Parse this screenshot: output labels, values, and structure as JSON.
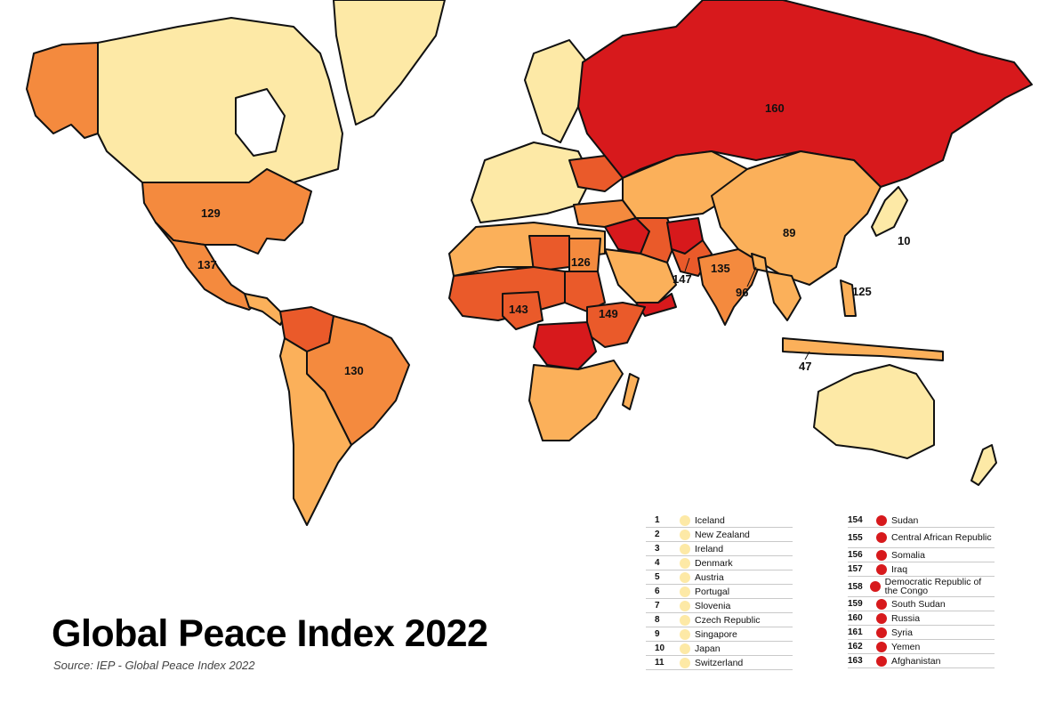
{
  "title": "Global Peace Index 2022",
  "source": "Source: IEP - Global Peace Index 2022",
  "colors": {
    "most_peaceful": "#fde9a6",
    "peaceful": "#fdd07a",
    "moderate": "#fbb05a",
    "low": "#f48a3e",
    "very_low": "#ea5a2a",
    "least_peaceful": "#d7191c",
    "ocean": "#ffffff",
    "legend_top_dot": "#fde9a6",
    "legend_bottom_dot": "#d7191c"
  },
  "map_labels": [
    {
      "id": "russia",
      "text": "160"
    },
    {
      "id": "usa",
      "text": "129"
    },
    {
      "id": "mexico",
      "text": "137"
    },
    {
      "id": "brazil",
      "text": "130"
    },
    {
      "id": "egypt",
      "text": "126"
    },
    {
      "id": "nigeria",
      "text": "143"
    },
    {
      "id": "ethiopia",
      "text": "149"
    },
    {
      "id": "pakistan",
      "text": "147"
    },
    {
      "id": "india",
      "text": "135"
    },
    {
      "id": "bangladesh",
      "text": "96"
    },
    {
      "id": "china",
      "text": "89"
    },
    {
      "id": "japan",
      "text": "10"
    },
    {
      "id": "philippines",
      "text": "125"
    },
    {
      "id": "indonesia",
      "text": "47"
    }
  ],
  "legend_most_peaceful": [
    {
      "rank": "1",
      "country": "Iceland"
    },
    {
      "rank": "2",
      "country": "New Zealand"
    },
    {
      "rank": "3",
      "country": "Ireland"
    },
    {
      "rank": "4",
      "country": "Denmark"
    },
    {
      "rank": "5",
      "country": "Austria"
    },
    {
      "rank": "6",
      "country": "Portugal"
    },
    {
      "rank": "7",
      "country": "Slovenia"
    },
    {
      "rank": "8",
      "country": "Czech Republic"
    },
    {
      "rank": "9",
      "country": "Singapore"
    },
    {
      "rank": "10",
      "country": "Japan"
    },
    {
      "rank": "11",
      "country": "Switzerland"
    }
  ],
  "legend_least_peaceful": [
    {
      "rank": "154",
      "country": "Sudan"
    },
    {
      "rank": "155",
      "country": "Central African Republic"
    },
    {
      "rank": "156",
      "country": "Somalia"
    },
    {
      "rank": "157",
      "country": "Iraq"
    },
    {
      "rank": "158",
      "country": "Democratic Republic of the Congo"
    },
    {
      "rank": "159",
      "country": "South Sudan"
    },
    {
      "rank": "160",
      "country": "Russia"
    },
    {
      "rank": "161",
      "country": "Syria"
    },
    {
      "rank": "162",
      "country": "Yemen"
    },
    {
      "rank": "163",
      "country": "Afghanistan"
    }
  ]
}
